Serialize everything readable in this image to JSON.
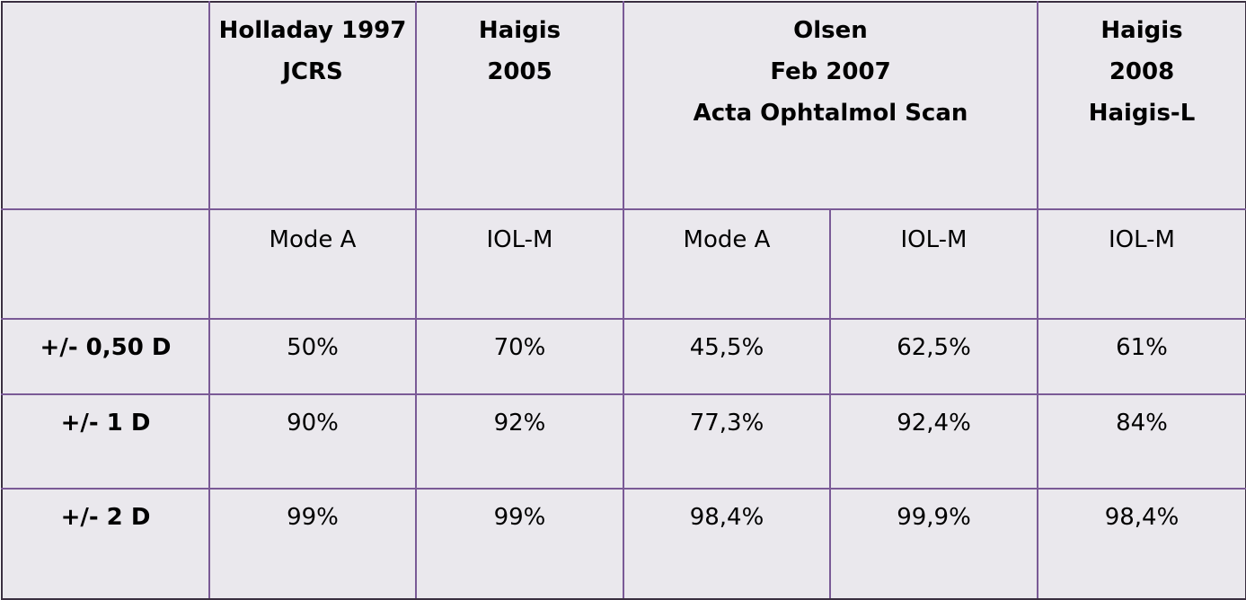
{
  "header": {
    "empty": "",
    "holladay": [
      "Holladay 1997",
      "JCRS"
    ],
    "haigis2005": [
      "Haigis",
      "2005"
    ],
    "olsen": [
      "Olsen",
      "Feb 2007",
      "Acta Ophtalmol Scan"
    ],
    "haigis2008": [
      "Haigis",
      "2008",
      "Haigis-L"
    ]
  },
  "subheader": [
    "Mode A",
    "IOL-M",
    "Mode A",
    "IOL-M",
    "IOL-M"
  ],
  "rows": [
    {
      "label": "+/- 0,50 D",
      "values": [
        "50%",
        "70%",
        "45,5%",
        "62,5%",
        "61%"
      ]
    },
    {
      "label": "+/- 1 D",
      "values": [
        "90%",
        "92%",
        "77,3%",
        "92,4%",
        "84%"
      ]
    },
    {
      "label": "+/- 2 D",
      "values": [
        "99%",
        "99%",
        "98,4%",
        "99,9%",
        "98,4%"
      ]
    }
  ],
  "colors": {
    "background": "#eae8ed",
    "grid": "#7a5a96"
  }
}
